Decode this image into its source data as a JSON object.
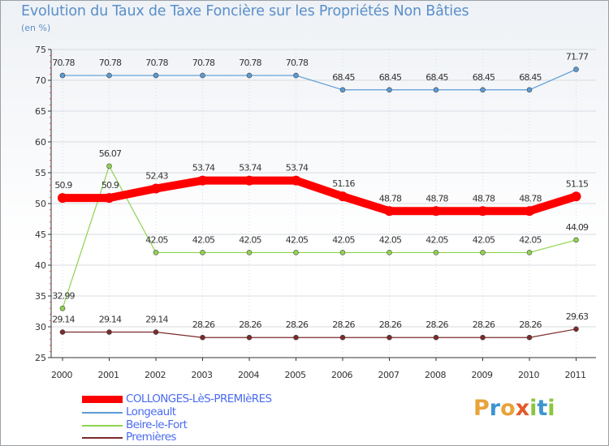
{
  "title": "Evolution du Taux de Taxe Foncière sur les Propriétés Non Bâties",
  "subtitle": "(en %)",
  "logo": {
    "letters": [
      "P",
      "r",
      "o",
      "x",
      "i",
      "t",
      "i"
    ],
    "colors": [
      "#e8a33a",
      "#3c95cf",
      "#e8a33a",
      "#e25a2b",
      "#8cc63f",
      "#3c95cf",
      "#8cc63f"
    ]
  },
  "chart_data": {
    "type": "line",
    "title": "Evolution du Taux de Taxe Foncière sur les Propriétés Non Bâties",
    "ylabel": "(en %)",
    "categories": [
      "2000",
      "2001",
      "2002",
      "2003",
      "2004",
      "2005",
      "2006",
      "2007",
      "2008",
      "2009",
      "2010",
      "2011"
    ],
    "ylim": [
      25,
      75
    ],
    "yticks": [
      25,
      30,
      35,
      40,
      45,
      50,
      55,
      60,
      65,
      70,
      75
    ],
    "grid": true,
    "legend_position": "bottom-left",
    "series": [
      {
        "name": "Longeault",
        "color": "#5b9bd5",
        "values": [
          70.78,
          70.78,
          70.78,
          70.78,
          70.78,
          70.78,
          68.45,
          68.45,
          68.45,
          68.45,
          68.45,
          71.77
        ],
        "labels": [
          "70.78",
          "70.78",
          "70.78",
          "70.78",
          "70.78",
          "70.78",
          "68.45",
          "68.45",
          "68.45",
          "68.45",
          "68.45",
          "71.77"
        ]
      },
      {
        "name": "Beire-le-Fort",
        "color": "#8fd34e",
        "values": [
          32.99,
          56.07,
          42.05,
          42.05,
          42.05,
          42.05,
          42.05,
          42.05,
          42.05,
          42.05,
          42.05,
          44.09
        ],
        "labels": [
          "32.99",
          "56.07",
          "42.05",
          "42.05",
          "42.05",
          "42.05",
          "42.05",
          "42.05",
          "42.05",
          "42.05",
          "42.05",
          "44.09"
        ]
      },
      {
        "name": "Premières",
        "color": "#7b2a2a",
        "values": [
          29.14,
          29.14,
          29.14,
          28.26,
          28.26,
          28.26,
          28.26,
          28.26,
          28.26,
          28.26,
          28.26,
          29.63
        ],
        "labels": [
          "29.14",
          "29.14",
          "29.14",
          "28.26",
          "28.26",
          "28.26",
          "28.26",
          "28.26",
          "28.26",
          "28.26",
          "28.26",
          "29.63"
        ]
      },
      {
        "name": "COLLONGES-LèS-PREMIèRES",
        "color": "#ff0000",
        "highlight": true,
        "values": [
          50.9,
          50.9,
          52.43,
          53.74,
          53.74,
          53.74,
          51.16,
          48.78,
          48.78,
          48.78,
          48.78,
          51.15
        ],
        "labels": [
          "50.9",
          "50.9",
          "52.43",
          "53.74",
          "53.74",
          "53.74",
          "51.16",
          "48.78",
          "48.78",
          "48.78",
          "48.78",
          "51.15"
        ]
      }
    ],
    "legend": [
      {
        "label": "COLLONGES-LèS-PREMIèRES",
        "color": "#ff0000",
        "text_color": "#4a6cf0",
        "thick": true
      },
      {
        "label": "Longeault",
        "color": "#5b9bd5",
        "text_color": "#4a6cf0",
        "thick": false
      },
      {
        "label": "Beire-le-Fort",
        "color": "#8fd34e",
        "text_color": "#4a6cf0",
        "thick": false
      },
      {
        "label": "Premières",
        "color": "#7b2a2a",
        "text_color": "#4a6cf0",
        "thick": false
      }
    ]
  }
}
